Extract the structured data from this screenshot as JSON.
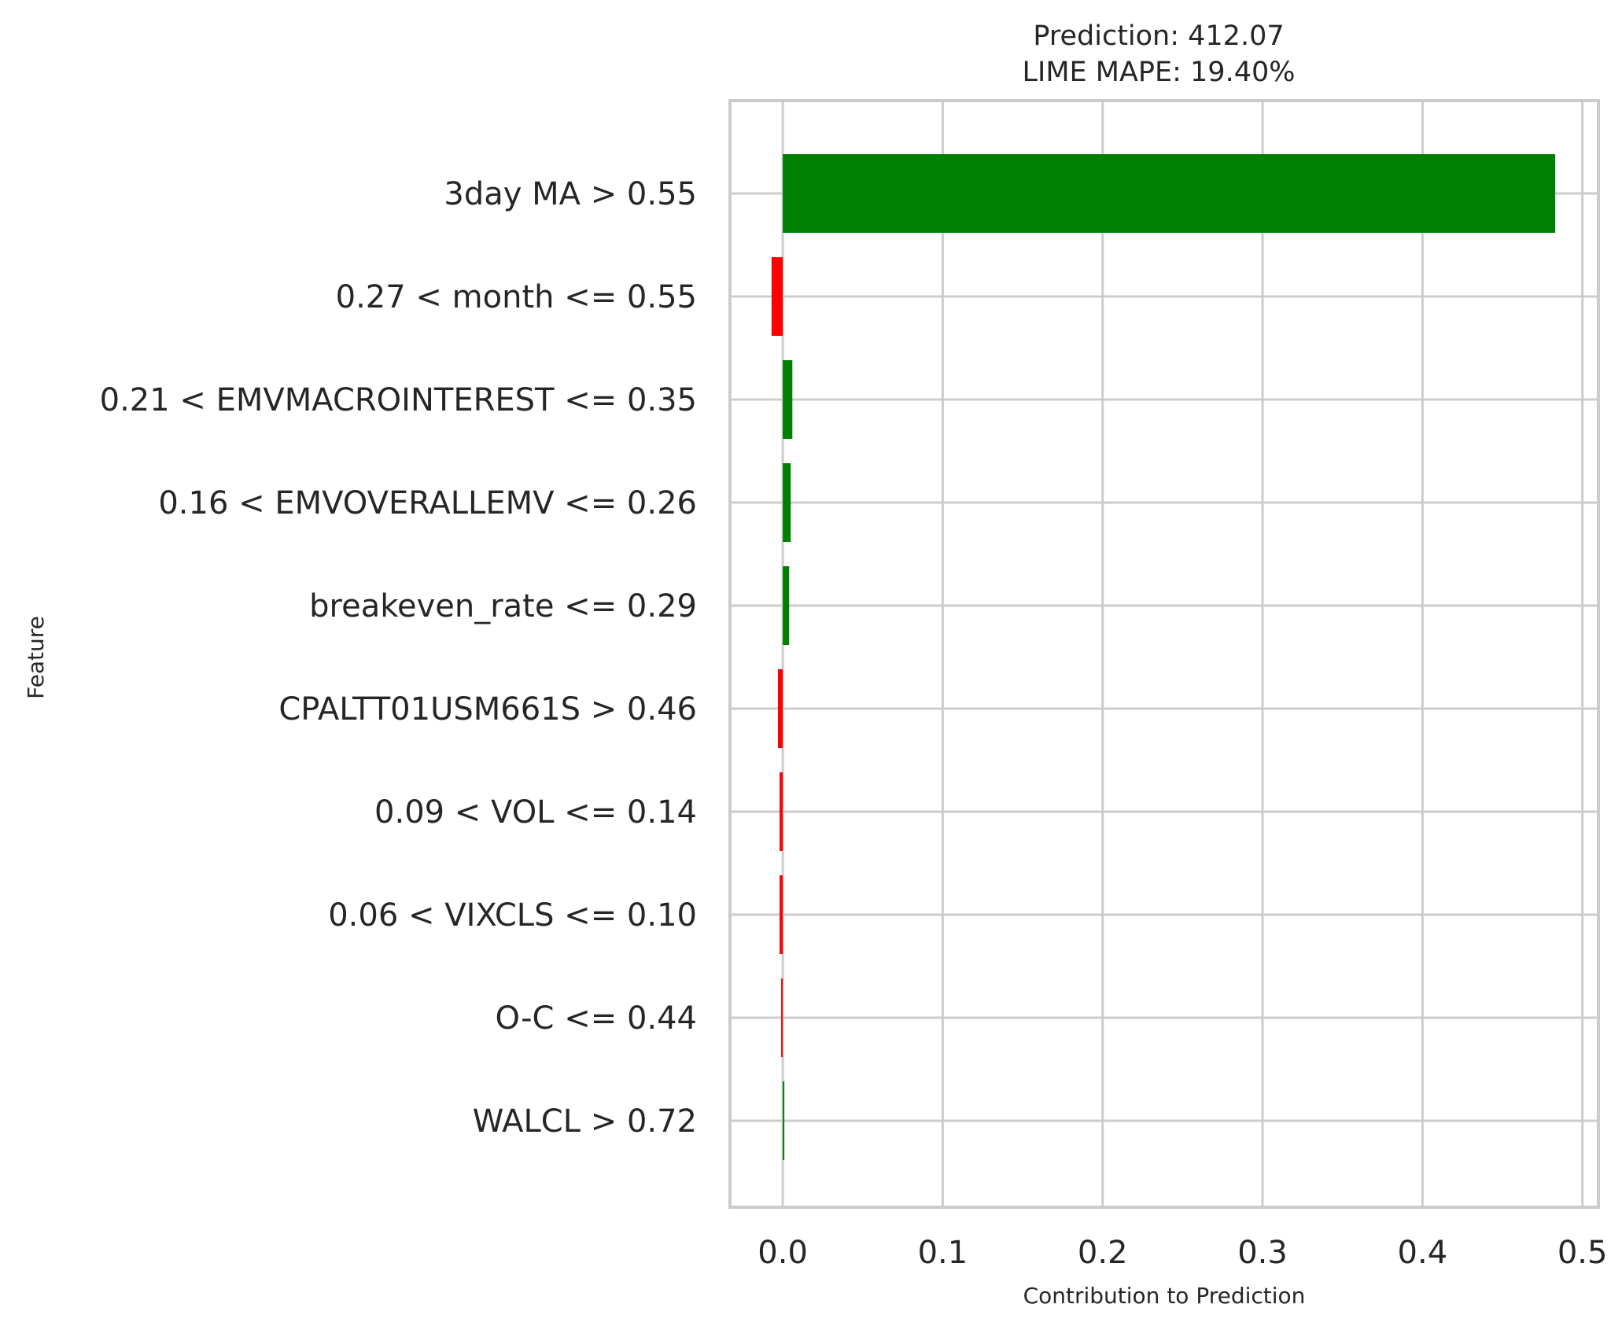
{
  "chart_data": {
    "type": "bar",
    "orientation": "horizontal",
    "title_lines": [
      "Prediction: 412.07",
      "LIME MAPE: 19.40%"
    ],
    "xlabel": "Contribution to Prediction",
    "ylabel": "Feature",
    "xlim": [
      -0.033,
      0.51
    ],
    "xticks": [
      0.0,
      0.1,
      0.2,
      0.3,
      0.4,
      0.5
    ],
    "xtick_labels": [
      "0.0",
      "0.1",
      "0.2",
      "0.3",
      "0.4",
      "0.5"
    ],
    "grid": true,
    "positive_color": "#008000",
    "negative_color": "#ff0000",
    "grid_color": "#cccccc",
    "categories": [
      "3day MA > 0.55",
      "0.27 < month <= 0.55",
      "0.21 < EMVMACROINTEREST <= 0.35",
      "0.16 < EMVOVERALLEMV <= 0.26",
      "breakeven_rate <= 0.29",
      "CPALTT01USM661S > 0.46",
      "0.09 < VOL <= 0.14",
      "0.06 < VIXCLS <= 0.10",
      "O-C <= 0.44",
      "WALCL > 0.72"
    ],
    "values": [
      0.483,
      -0.007,
      0.006,
      0.005,
      0.004,
      -0.003,
      -0.002,
      -0.002,
      -0.001,
      0.001
    ]
  }
}
